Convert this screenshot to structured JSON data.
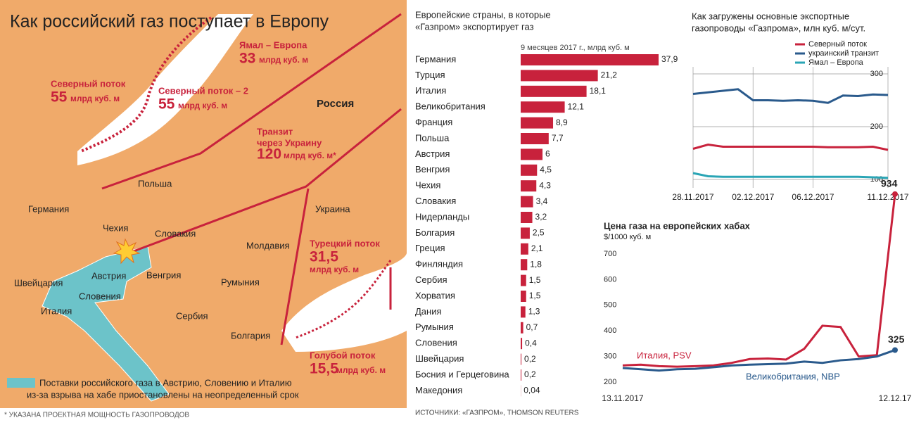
{
  "map": {
    "title": "Как российский газ поступает в Европу",
    "pipelines": [
      {
        "name": "Северный поток",
        "capacity": "55",
        "unit": "млрд куб. м"
      },
      {
        "name": "Северный поток – 2",
        "capacity": "55",
        "unit": "млрд куб. м"
      },
      {
        "name": "Ямал – Европа",
        "capacity": "33",
        "unit": "млрд куб. м"
      },
      {
        "name": [
          "Транзит",
          "через Украину"
        ],
        "capacity": "120",
        "unit": "млрд куб. м*"
      },
      {
        "name": "Турецкий поток",
        "capacity": "31,5",
        "unit": "млрд куб. м"
      },
      {
        "name": "Голубой поток",
        "capacity": "15,5",
        "unit": "млрд куб. м"
      }
    ],
    "countries": [
      "Россия",
      "Германия",
      "Польша",
      "Чехия",
      "Словакия",
      "Австрия",
      "Швейцария",
      "Словения",
      "Италия",
      "Венгрия",
      "Молдавия",
      "Украина",
      "Румыния",
      "Сербия",
      "Болгария"
    ],
    "legend": [
      "Поставки российского газа в Австрию, Словению и Италию",
      "из-за взрыва на хабе приостановлены на неопределенный срок"
    ],
    "footnote": "* УКАЗАНА ПРОЕКТНАЯ МОЩНОСТЬ ГАЗОПРОВОДОВ"
  },
  "chart_data": [
    {
      "type": "bar",
      "title": [
        "Европейские страны, в которые",
        "«Газпром» экспортирует газ"
      ],
      "subtitle": "9 месяцев 2017 г., млрд куб. м",
      "color": "#c8223c",
      "categories": [
        "Германия",
        "Турция",
        "Италия",
        "Великобритания",
        "Франция",
        "Польша",
        "Австрия",
        "Венгрия",
        "Чехия",
        "Словакия",
        "Нидерланды",
        "Болгария",
        "Греция",
        "Финляндия",
        "Сербия",
        "Хорватия",
        "Дания",
        "Румыния",
        "Словения",
        "Швейцария",
        "Босния и Герцеговина",
        "Македония"
      ],
      "values": [
        37.9,
        21.2,
        18.1,
        12.1,
        8.9,
        7.7,
        6,
        4.5,
        4.3,
        3.4,
        3.2,
        2.5,
        2.1,
        1.8,
        1.5,
        1.5,
        1.3,
        0.7,
        0.4,
        0.2,
        0.2,
        0.04
      ],
      "value_labels": [
        "37,9",
        "21,2",
        "18,1",
        "12,1",
        "8,9",
        "7,7",
        "6",
        "4,5",
        "4,3",
        "3,4",
        "3,2",
        "2,5",
        "2,1",
        "1,8",
        "1,5",
        "1,5",
        "1,3",
        "0,7",
        "0,4",
        "0,2",
        "0,2",
        "0,04"
      ],
      "source": "ИСТОЧНИКИ: «ГАЗПРОМ», THOMSON REUTERS"
    },
    {
      "type": "line",
      "title": [
        "Как загружены основные экспортные",
        "газопроводы «Газпрома», млн куб. м/сут."
      ],
      "categories": [
        "28.11.2017",
        null,
        null,
        null,
        "02.12.2017",
        null,
        null,
        null,
        "06.12.2017",
        null,
        null,
        null,
        null,
        "11.12.2017"
      ],
      "ylim": [
        100,
        300
      ],
      "yticks": [
        100,
        200,
        300
      ],
      "grid": true,
      "series": [
        {
          "name": "Северный поток",
          "color": "#c8223c",
          "values": [
            158,
            166,
            162,
            162,
            162,
            162,
            162,
            162,
            162,
            161,
            161,
            161,
            162,
            156
          ]
        },
        {
          "name": "украинский транзит",
          "color": "#2a5a8c",
          "values": [
            262,
            265,
            268,
            271,
            250,
            250,
            249,
            250,
            249,
            245,
            259,
            258,
            261,
            260
          ]
        },
        {
          "name": "Ямал – Европа",
          "color": "#2aa5b5",
          "values": [
            112,
            106,
            105,
            105,
            105,
            105,
            105,
            105,
            105,
            105,
            105,
            105,
            104,
            103
          ]
        }
      ]
    },
    {
      "type": "line",
      "title": "Цена газа на европейских хабах",
      "subtitle": "$/1000 куб. м",
      "categories": [
        "13.11.2017",
        null,
        null,
        null,
        null,
        null,
        null,
        null,
        null,
        null,
        null,
        null,
        null,
        null,
        null,
        "12.12.17"
      ],
      "ylim": [
        200,
        700
      ],
      "yticks": [
        200,
        300,
        400,
        500,
        600,
        700
      ],
      "series": [
        {
          "name": "Италия, PSV",
          "color": "#c8223c",
          "values": [
            265,
            268,
            262,
            260,
            262,
            265,
            275,
            290,
            292,
            288,
            330,
            420,
            415,
            300,
            305,
            934
          ]
        },
        {
          "name": "Великобритания, NBP",
          "color": "#2a5a8c",
          "values": [
            255,
            250,
            245,
            250,
            252,
            258,
            265,
            268,
            270,
            272,
            280,
            275,
            285,
            290,
            300,
            325
          ]
        }
      ]
    }
  ]
}
